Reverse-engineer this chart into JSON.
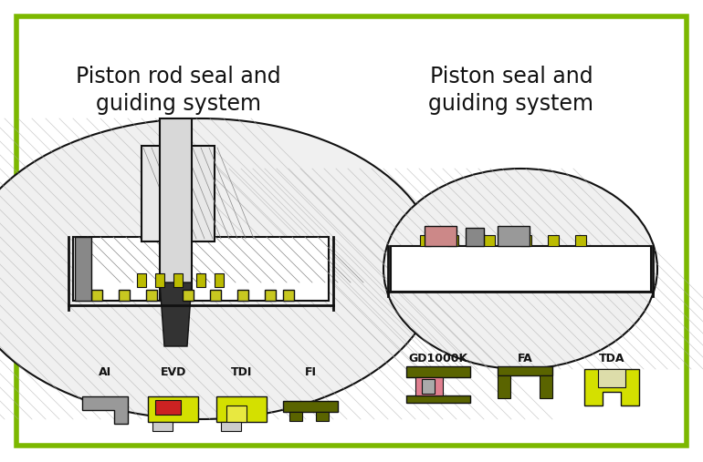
{
  "bg_color": "#ffffff",
  "border_color": "#7cb800",
  "border_lw": 4,
  "title_left": "Piston rod seal and\nguiding system",
  "title_right": "Piston seal and\nguiding system",
  "title_fontsize": 17,
  "title_color": "#111111",
  "color_yellow": "#d4e000",
  "color_gray": "#999999",
  "color_red": "#cc2222",
  "color_darkgreen": "#5a6400",
  "color_pink": "#e08090",
  "color_lightgray": "#cccccc",
  "color_black": "#111111",
  "color_darkgray": "#555555",
  "label_AI": "AI",
  "label_EVD": "EVD",
  "label_TDI": "TDI",
  "label_FI": "FI",
  "label_GD1000K": "GD1000K",
  "label_FA": "FA",
  "label_TDA": "TDA",
  "label_fontsize": 9
}
